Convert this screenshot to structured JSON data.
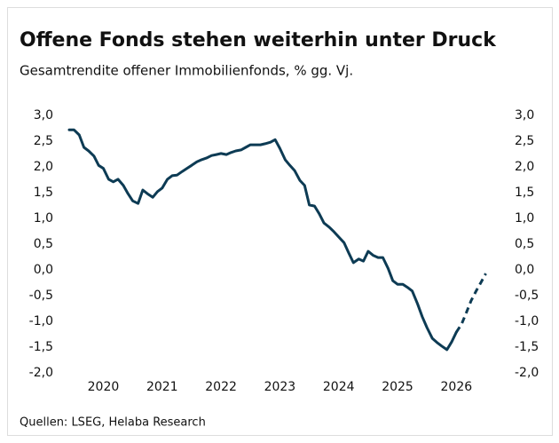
{
  "chart_data": {
    "type": "line",
    "title": "Offene Fonds stehen weiterhin unter Druck",
    "subtitle": "Gesamtrendite offener Immobilienfonds, % gg. Vj.",
    "source": "Quellen: LSEG, Helaba Research",
    "x": [
      2019.42,
      2019.5,
      2019.59,
      2019.67,
      2019.75,
      2019.84,
      2019.92,
      2020.0,
      2020.09,
      2020.17,
      2020.25,
      2020.34,
      2020.42,
      2020.5,
      2020.59,
      2020.67,
      2020.75,
      2020.84,
      2020.92,
      2021.0,
      2021.09,
      2021.17,
      2021.25,
      2021.34,
      2021.42,
      2021.5,
      2021.59,
      2021.67,
      2021.75,
      2021.84,
      2021.92,
      2022.0,
      2022.09,
      2022.17,
      2022.25,
      2022.34,
      2022.42,
      2022.5,
      2022.59,
      2022.67,
      2022.75,
      2022.84,
      2022.92,
      2023.0,
      2023.09,
      2023.17,
      2023.25,
      2023.34,
      2023.42,
      2023.5,
      2023.59,
      2023.67,
      2023.75,
      2023.84,
      2023.92,
      2024.0,
      2024.09,
      2024.17,
      2024.25,
      2024.34,
      2024.42,
      2024.5,
      2024.59,
      2024.67,
      2024.75,
      2024.84,
      2024.92,
      2025.0,
      2025.09,
      2025.17,
      2025.25,
      2025.34,
      2025.42,
      2025.5,
      2025.59,
      2025.67,
      2025.75,
      2025.84,
      2025.92,
      2026.0,
      2026.09,
      2026.17,
      2026.25,
      2026.34,
      2026.42,
      2026.5
    ],
    "series": [
      {
        "color": "#0d3b54",
        "dashed": false,
        "values": [
          2.72,
          2.72,
          2.62,
          2.38,
          2.31,
          2.21,
          2.03,
          1.97,
          1.76,
          1.71,
          1.76,
          1.64,
          1.48,
          1.34,
          1.29,
          1.55,
          1.48,
          1.41,
          1.52,
          1.59,
          1.76,
          1.83,
          1.84,
          1.91,
          1.97,
          2.03,
          2.1,
          2.14,
          2.17,
          2.22,
          2.24,
          2.26,
          2.24,
          2.28,
          2.31,
          2.33,
          2.38,
          2.43,
          2.43,
          2.43,
          2.45,
          2.48,
          2.53,
          2.36,
          2.14,
          2.03,
          1.93,
          1.74,
          1.64,
          1.26,
          1.24,
          1.09,
          0.91,
          0.83,
          0.74,
          0.64,
          0.53,
          0.33,
          0.14,
          0.21,
          0.17,
          0.36,
          0.28,
          0.24,
          0.24,
          0.03,
          -0.21,
          -0.28,
          -0.28,
          -0.34,
          -0.41,
          -0.66,
          -0.91,
          -1.12,
          -1.33,
          -1.41,
          -1.48,
          -1.55,
          -1.4,
          -1.21,
          null,
          null,
          null,
          null,
          null,
          null
        ]
      },
      {
        "color": "#0d3b54",
        "dashed": true,
        "values": [
          null,
          null,
          null,
          null,
          null,
          null,
          null,
          null,
          null,
          null,
          null,
          null,
          null,
          null,
          null,
          null,
          null,
          null,
          null,
          null,
          null,
          null,
          null,
          null,
          null,
          null,
          null,
          null,
          null,
          null,
          null,
          null,
          null,
          null,
          null,
          null,
          null,
          null,
          null,
          null,
          null,
          null,
          null,
          null,
          null,
          null,
          null,
          null,
          null,
          null,
          null,
          null,
          null,
          null,
          null,
          null,
          null,
          null,
          null,
          null,
          null,
          null,
          null,
          null,
          null,
          null,
          null,
          null,
          null,
          null,
          null,
          null,
          null,
          null,
          null,
          null,
          null,
          null,
          null,
          -1.21,
          -1.05,
          -0.83,
          -0.6,
          -0.4,
          -0.24,
          -0.07
        ]
      }
    ],
    "xlim": [
      2019.42,
      2026.5
    ],
    "xticks": [
      2020,
      2021,
      2022,
      2023,
      2024,
      2025,
      2026
    ],
    "ylim": [
      -2,
      3
    ],
    "yticks": [
      {
        "value": 3,
        "label": "3,0"
      },
      {
        "value": 2.5,
        "label": "2,5"
      },
      {
        "value": 2,
        "label": "2,0"
      },
      {
        "value": 1.5,
        "label": "1,5"
      },
      {
        "value": 1,
        "label": "1,0"
      },
      {
        "value": 0.5,
        "label": "0,5"
      },
      {
        "value": 0,
        "label": "0,0"
      },
      {
        "value": -0.5,
        "label": "-0,5"
      },
      {
        "value": -1,
        "label": "-1,0"
      },
      {
        "value": -1.5,
        "label": "-1,5"
      },
      {
        "value": -2,
        "label": "-2,0"
      }
    ],
    "y2lim": [
      -2,
      3
    ],
    "y2ticks": [
      {
        "value": 3,
        "label": "3,0"
      },
      {
        "value": 2.5,
        "label": "2,5"
      },
      {
        "value": 2,
        "label": "2,0"
      },
      {
        "value": 1.5,
        "label": "1,5"
      },
      {
        "value": 1,
        "label": "1,0"
      },
      {
        "value": 0.5,
        "label": "0,5"
      },
      {
        "value": 0,
        "label": "0,0"
      },
      {
        "value": -0.5,
        "label": "-0,5"
      },
      {
        "value": -1,
        "label": "-1,0"
      },
      {
        "value": -1.5,
        "label": "-1,5"
      },
      {
        "value": -2,
        "label": "-2,0"
      }
    ],
    "grid": false
  }
}
